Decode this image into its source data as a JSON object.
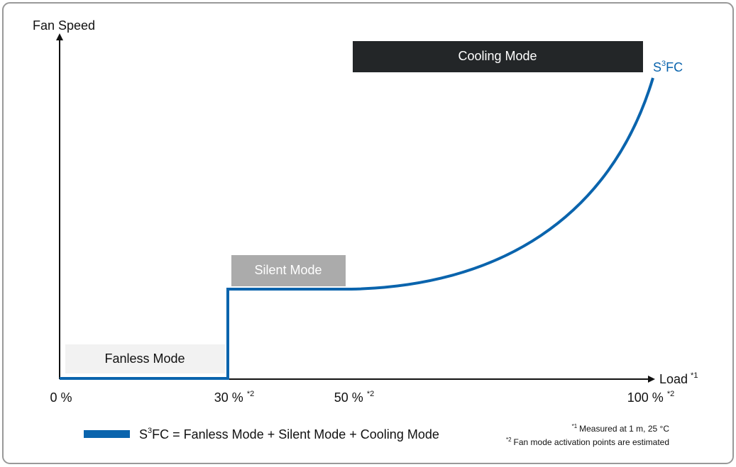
{
  "axes": {
    "y_label": "Fan Speed",
    "x_label": {
      "text": "Load",
      "sup": "*1"
    }
  },
  "x_labels": [
    {
      "text": "0 %"
    },
    {
      "text": "30 %",
      "sup": "*2"
    },
    {
      "text": "50 %",
      "sup": "*2"
    },
    {
      "text": "100 %",
      "sup": "*2"
    }
  ],
  "modes": {
    "fanless": "Fanless Mode",
    "silent": "Silent Mode",
    "cooling": "Cooling Mode"
  },
  "curve_label": {
    "base": "S",
    "sup": "3",
    "rest": "FC"
  },
  "legend": {
    "base": "S",
    "sup": "3",
    "rest": "FC = Fanless Mode + Silent Mode + Cooling Mode"
  },
  "footnotes": [
    {
      "mark": "*1",
      "text": "Measured at 1 m, 25 °C"
    },
    {
      "mark": "*2",
      "text": "Fan mode activation points are estimated"
    }
  ]
}
